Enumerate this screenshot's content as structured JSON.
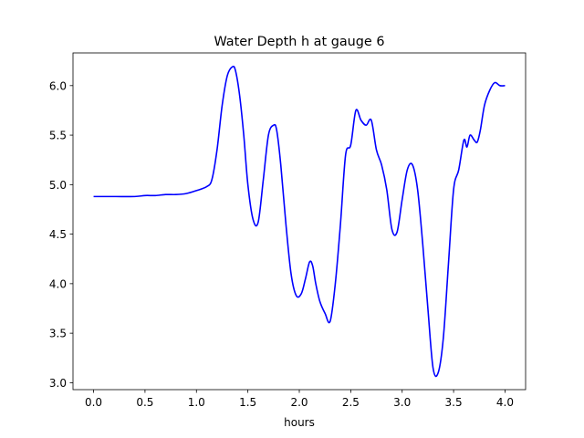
{
  "chart_data": {
    "type": "line",
    "title": "Water Depth h at gauge 6",
    "xlabel": "hours",
    "ylabel": "",
    "xlim": [
      -0.2,
      4.2
    ],
    "ylim": [
      2.93,
      6.33
    ],
    "xticks": [
      0.0,
      0.5,
      1.0,
      1.5,
      2.0,
      2.5,
      3.0,
      3.5,
      4.0
    ],
    "xtick_labels": [
      "0.0",
      "0.5",
      "1.0",
      "1.5",
      "2.0",
      "2.5",
      "3.0",
      "3.5",
      "4.0"
    ],
    "yticks": [
      3.0,
      3.5,
      4.0,
      4.5,
      5.0,
      5.5,
      6.0
    ],
    "ytick_labels": [
      "3.0",
      "3.5",
      "4.0",
      "4.5",
      "5.0",
      "5.5",
      "6.0"
    ],
    "grid": false,
    "legend": "none",
    "series": [
      {
        "color": "#0000ff",
        "x": [
          0.0,
          0.2,
          0.4,
          0.5,
          0.6,
          0.7,
          0.8,
          0.9,
          1.0,
          1.1,
          1.15,
          1.2,
          1.25,
          1.3,
          1.35,
          1.38,
          1.42,
          1.46,
          1.5,
          1.55,
          1.6,
          1.65,
          1.7,
          1.75,
          1.78,
          1.82,
          1.87,
          1.92,
          1.97,
          2.02,
          2.06,
          2.1,
          2.13,
          2.16,
          2.2,
          2.25,
          2.3,
          2.35,
          2.4,
          2.45,
          2.5,
          2.55,
          2.6,
          2.65,
          2.7,
          2.75,
          2.8,
          2.85,
          2.9,
          2.95,
          3.0,
          3.05,
          3.1,
          3.15,
          3.2,
          3.25,
          3.3,
          3.35,
          3.4,
          3.45,
          3.5,
          3.55,
          3.6,
          3.63,
          3.66,
          3.7,
          3.73,
          3.76,
          3.8,
          3.85,
          3.9,
          3.95,
          4.0
        ],
        "y": [
          4.88,
          4.88,
          4.88,
          4.89,
          4.89,
          4.9,
          4.9,
          4.91,
          4.94,
          4.98,
          5.05,
          5.35,
          5.8,
          6.1,
          6.19,
          6.15,
          5.9,
          5.5,
          5.0,
          4.65,
          4.62,
          5.05,
          5.5,
          5.6,
          5.55,
          5.2,
          4.6,
          4.1,
          3.88,
          3.9,
          4.05,
          4.22,
          4.18,
          4.0,
          3.82,
          3.7,
          3.62,
          4.0,
          4.6,
          5.3,
          5.4,
          5.75,
          5.65,
          5.6,
          5.65,
          5.35,
          5.2,
          4.95,
          4.55,
          4.52,
          4.85,
          5.15,
          5.2,
          4.95,
          4.4,
          3.75,
          3.15,
          3.1,
          3.45,
          4.2,
          4.95,
          5.15,
          5.45,
          5.38,
          5.5,
          5.45,
          5.43,
          5.55,
          5.8,
          5.95,
          6.03,
          6.0,
          6.0
        ]
      }
    ]
  }
}
